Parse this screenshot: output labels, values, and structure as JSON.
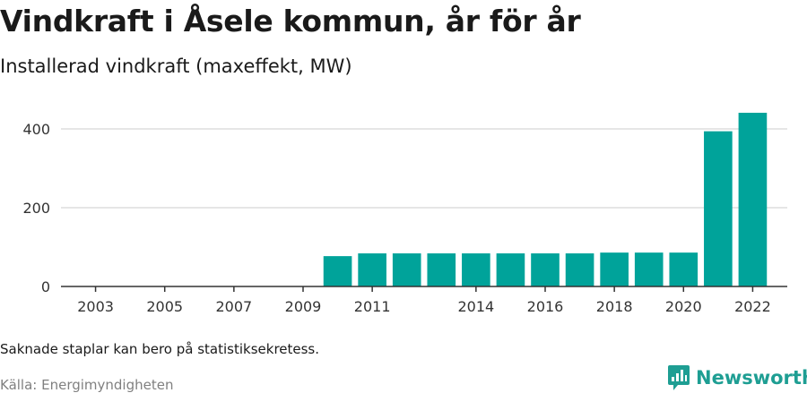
{
  "header": {
    "title": "Vindkraft i Åsele kommun, år för år",
    "subtitle": "Installerad vindkraft (maxeffekt, MW)"
  },
  "footer": {
    "note": "Saknade staplar kan bero på statistiksekretess.",
    "source": "Källa: Energimyndigheten",
    "brand": "Newsworthy"
  },
  "colors": {
    "bar": "#00a39a",
    "brand": "#1e9e93",
    "grid": "#dddddd",
    "axis": "#333333"
  },
  "icons": {
    "brand_logo": "newsworthy-logo-icon"
  },
  "chart_data": {
    "type": "bar",
    "title": "Vindkraft i Åsele kommun, år för år",
    "ylabel": "Installerad vindkraft (maxeffekt, MW)",
    "xlim": [
      2002,
      2023
    ],
    "ylim": [
      0,
      500
    ],
    "y_ticks": [
      0,
      200,
      400
    ],
    "x_ticks": [
      2003,
      2005,
      2007,
      2009,
      2011,
      2014,
      2016,
      2018,
      2020,
      2022
    ],
    "grid": true,
    "x": [
      2010,
      2011,
      2012,
      2013,
      2014,
      2015,
      2016,
      2017,
      2018,
      2019,
      2020,
      2021,
      2022
    ],
    "values": [
      77,
      84,
      84,
      84,
      84,
      84,
      84,
      84,
      86,
      86,
      86,
      394,
      441
    ]
  }
}
